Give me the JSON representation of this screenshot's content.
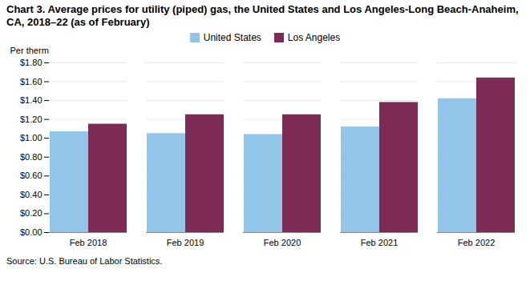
{
  "chart_data": {
    "type": "bar",
    "title": "Chart 3. Average prices for utility (piped) gas, the United States and Los Angeles-Long Beach-Anaheim, CA, 2018–22 (as of February)",
    "y_label": "Per therm",
    "source": "Source: U.S. Bureau of Labor Statistics.",
    "categories": [
      "Feb 2018",
      "Feb 2019",
      "Feb 2020",
      "Feb 2021",
      "Feb 2022"
    ],
    "series": [
      {
        "name": "United States",
        "color": "#92C5E8",
        "values": [
          1.07,
          1.05,
          1.04,
          1.12,
          1.42
        ]
      },
      {
        "name": "Los Angeles",
        "color": "#7B2B55",
        "values": [
          1.15,
          1.25,
          1.25,
          1.38,
          1.64
        ]
      }
    ],
    "ylim": [
      0.0,
      1.8
    ],
    "yticks": [
      {
        "value": 0.0,
        "label": "$0.00"
      },
      {
        "value": 0.2,
        "label": "$0.20"
      },
      {
        "value": 0.4,
        "label": "$0.40"
      },
      {
        "value": 0.6,
        "label": "$0.60"
      },
      {
        "value": 0.8,
        "label": "$0.80"
      },
      {
        "value": 1.0,
        "label": "$1.00"
      },
      {
        "value": 1.2,
        "label": "$1.20"
      },
      {
        "value": 1.4,
        "label": "$1.40"
      },
      {
        "value": 1.6,
        "label": "$1.60"
      },
      {
        "value": 1.8,
        "label": "$1.80"
      }
    ],
    "grid": true,
    "legend": "top"
  }
}
